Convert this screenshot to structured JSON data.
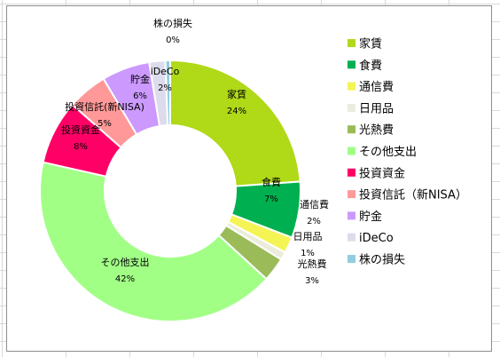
{
  "chart_data": {
    "type": "pie",
    "donut": true,
    "title": "",
    "legend_position": "right",
    "slices": [
      {
        "label": "家賃",
        "value": 24,
        "pct_label": "24%",
        "color": "#b0d918"
      },
      {
        "label": "食費",
        "value": 7,
        "pct_label": "7%",
        "color": "#00b050"
      },
      {
        "label": "通信費",
        "value": 2,
        "pct_label": "2%",
        "color": "#f4f455"
      },
      {
        "label": "日用品",
        "value": 1,
        "pct_label": "1%",
        "color": "#ececdc"
      },
      {
        "label": "光熱費",
        "value": 3,
        "pct_label": "3%",
        "color": "#9bbb59"
      },
      {
        "label": "その他支出",
        "value": 42,
        "pct_label": "42%",
        "color": "#a1ff86"
      },
      {
        "label": "投資資金",
        "value": 8,
        "pct_label": "8%",
        "color": "#ff0066"
      },
      {
        "label": "投資信託（新NISA）",
        "value": 5,
        "pct_label": "5%",
        "color": "#ff9999"
      },
      {
        "label": "貯金",
        "value": 6,
        "pct_label": "6%",
        "color": "#cc99ff"
      },
      {
        "label": "iDeCo",
        "value": 2,
        "pct_label": "2%",
        "color": "#dcdcec"
      },
      {
        "label": "株の損失",
        "value": 0,
        "pct_label": "0%",
        "color": "#93cddd"
      }
    ]
  }
}
